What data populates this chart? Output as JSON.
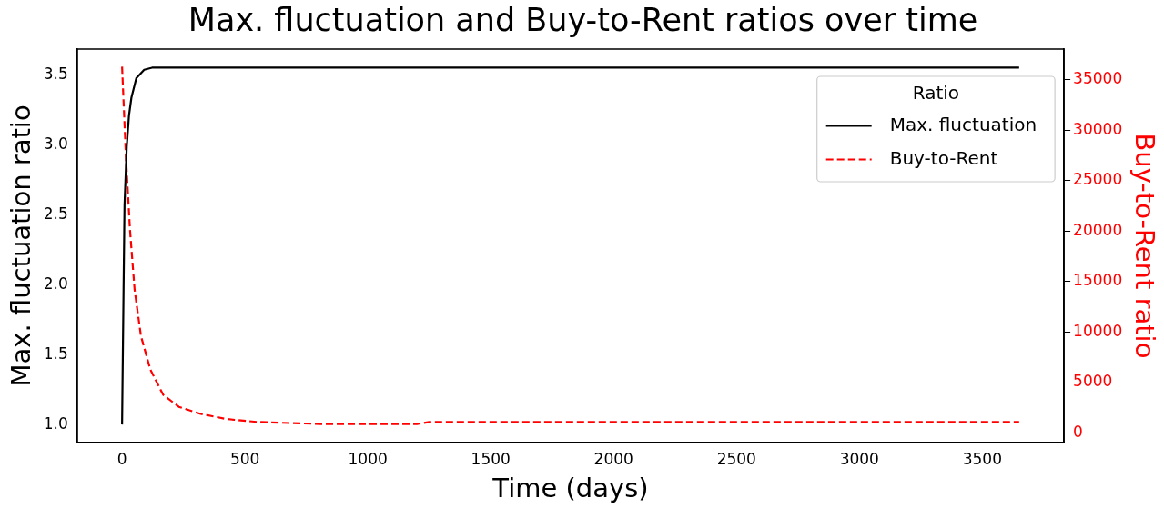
{
  "chart_data": {
    "type": "line",
    "title": "Max. fluctuation and Buy-to-Rent ratios over time",
    "xlabel": "Time (days)",
    "ylabel": "Max. fluctuation ratio",
    "y2label": "Buy-to-Rent ratio",
    "legend_title": "Ratio",
    "legend": "top right",
    "grid": false,
    "marker": "none",
    "xlim": [
      -182.5,
      3832.5
    ],
    "xticks": [
      0,
      500,
      1000,
      1500,
      2000,
      2500,
      3000,
      3500
    ],
    "ylim": [
      0.872,
      3.688
    ],
    "yticks": [
      {
        "value": 1,
        "label": "1.0"
      },
      {
        "value": 1.5,
        "label": "1.5"
      },
      {
        "value": 2,
        "label": "2.0"
      },
      {
        "value": 2.5,
        "label": "2.5"
      },
      {
        "value": 3,
        "label": "3.0"
      },
      {
        "value": 3.5,
        "label": "3.5"
      }
    ],
    "y2lim": [
      -920,
      38040
    ],
    "y2ticks": [
      0,
      5000,
      10000,
      15000,
      20000,
      25000,
      30000,
      35000
    ],
    "series": [
      {
        "name": "Max. fluctuation",
        "color": "#000000",
        "line_style": "solid",
        "axis": "y",
        "x": [
          0,
          6,
          10,
          19,
          28,
          38,
          58,
          90,
          122,
          3000,
          3650
        ],
        "values": [
          1.0,
          1.96,
          2.57,
          2.99,
          3.21,
          3.34,
          3.48,
          3.54,
          3.555,
          3.555,
          3.555
        ]
      },
      {
        "name": "Buy-to-Rent",
        "color": "#ff0000",
        "line_style": "dashed",
        "axis": "y2",
        "x": [
          0,
          16,
          32,
          51,
          77,
          115,
          167,
          231,
          320,
          423,
          551,
          808,
          1000,
          1150,
          1200,
          1250,
          3650
        ],
        "values": [
          36300,
          27200,
          20200,
          14200,
          9600,
          6300,
          3800,
          2600,
          1900,
          1400,
          1100,
          900,
          900,
          900,
          900,
          1100,
          1100
        ]
      }
    ]
  }
}
